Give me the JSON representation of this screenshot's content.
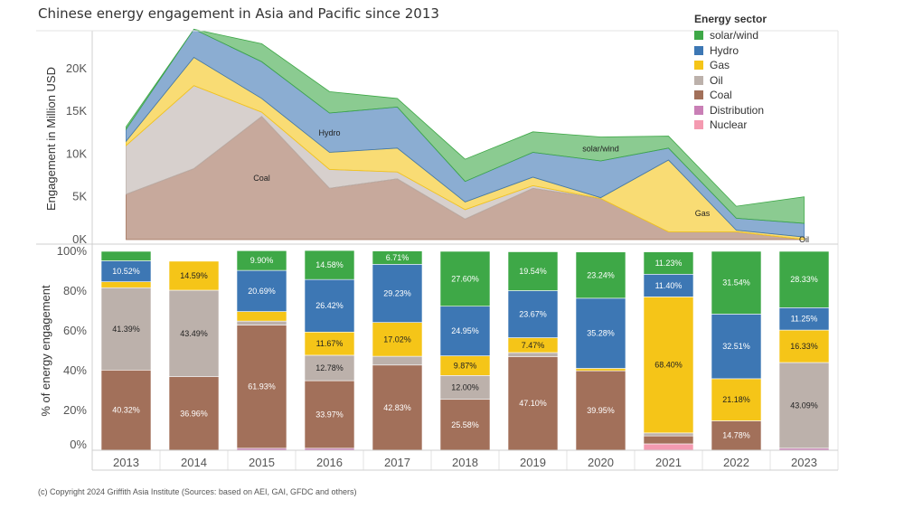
{
  "title": "Chinese energy engagement in Asia and Pacific since 2013",
  "footer": "(c) Copyright 2024 Griffith Asia Institute (Sources: based on AEI, GAI, GFDC and others)",
  "legend": {
    "title": "Energy sector",
    "items": [
      {
        "name": "solar/wind",
        "color": "#3ea847"
      },
      {
        "name": "Hydro",
        "color": "#3d77b4"
      },
      {
        "name": "Gas",
        "color": "#f5c518"
      },
      {
        "name": "Oil",
        "color": "#bcb1ab"
      },
      {
        "name": "Coal",
        "color": "#a2705a"
      },
      {
        "name": "Distribution",
        "color": "#c97fb6"
      },
      {
        "name": "Nuclear",
        "color": "#f49ab0"
      }
    ]
  },
  "chart_data": [
    {
      "type": "area",
      "stacked": true,
      "title": "Chinese energy engagement in Asia and Pacific since 2013",
      "ylabel": "Engagement in Million USD",
      "ylim": [
        0,
        24000
      ],
      "yticks": [
        0,
        5000,
        10000,
        15000,
        20000
      ],
      "ytick_labels": [
        "0K",
        "5K",
        "10K",
        "15K",
        "20K"
      ],
      "categories": [
        "2013",
        "2014",
        "2015",
        "2016",
        "2017",
        "2018",
        "2019",
        "2020",
        "2021",
        "2022",
        "2023"
      ],
      "series": [
        {
          "name": "Nuclear",
          "values": [
            0,
            0,
            0,
            0,
            0,
            0,
            0,
            0,
            0,
            0,
            0
          ]
        },
        {
          "name": "Distribution",
          "values": [
            0,
            0,
            0,
            0,
            0,
            0,
            0,
            0,
            0,
            0,
            0
          ]
        },
        {
          "name": "Coal",
          "values": [
            5300,
            8300,
            14400,
            6000,
            7100,
            2400,
            6000,
            4800,
            900,
            900,
            0
          ]
        },
        {
          "name": "Oil",
          "values": [
            5700,
            9700,
            500,
            2200,
            800,
            1100,
            300,
            0,
            0,
            0,
            0
          ]
        },
        {
          "name": "Gas",
          "values": [
            500,
            3300,
            1600,
            2000,
            2800,
            900,
            1000,
            100,
            8400,
            200,
            300
          ]
        },
        {
          "name": "Hydro",
          "values": [
            1400,
            3300,
            4300,
            4600,
            4800,
            2400,
            2900,
            4300,
            1400,
            1400,
            1600
          ]
        },
        {
          "name": "solar/wind",
          "values": [
            300,
            0,
            2100,
            2500,
            1000,
            2600,
            2400,
            2800,
            1400,
            1400,
            3100
          ]
        }
      ],
      "annotations": [
        "Coal",
        "Hydro",
        "solar/wind",
        "Gas",
        "Oil"
      ]
    },
    {
      "type": "bar",
      "stacked": true,
      "percent": true,
      "ylabel": "% of energy engagement",
      "ylim": [
        0,
        100
      ],
      "yticks": [
        0,
        20,
        40,
        60,
        80,
        100
      ],
      "ytick_labels": [
        "0%",
        "20%",
        "40%",
        "60%",
        "80%",
        "100%"
      ],
      "categories": [
        "2013",
        "2014",
        "2015",
        "2016",
        "2017",
        "2018",
        "2019",
        "2020",
        "2021",
        "2022",
        "2023"
      ],
      "series": [
        {
          "name": "Nuclear",
          "values": [
            0,
            0,
            0,
            0,
            0,
            0,
            0,
            0,
            3.2,
            0,
            0
          ]
        },
        {
          "name": "Distribution",
          "values": [
            0,
            0,
            1.0,
            1.0,
            0,
            0,
            0,
            0,
            0,
            0,
            1.0
          ]
        },
        {
          "name": "Coal",
          "values": [
            40.32,
            36.96,
            61.93,
            33.97,
            42.83,
            25.58,
            47.1,
            39.95,
            4.0,
            14.78,
            0
          ]
        },
        {
          "name": "Oil",
          "values": [
            41.39,
            43.49,
            2.0,
            12.78,
            4.4,
            12.0,
            2.0,
            0,
            1.5,
            0,
            43.09
          ]
        },
        {
          "name": "Gas",
          "values": [
            3.0,
            14.59,
            4.8,
            11.67,
            17.02,
            9.87,
            7.47,
            1.2,
            68.4,
            21.18,
            16.33
          ]
        },
        {
          "name": "Hydro",
          "values": [
            10.52,
            0,
            20.69,
            26.42,
            29.23,
            24.95,
            23.67,
            35.28,
            11.4,
            32.51,
            11.25
          ]
        },
        {
          "name": "solar/wind",
          "values": [
            4.77,
            0,
            9.9,
            14.58,
            6.71,
            27.6,
            19.54,
            23.24,
            11.23,
            31.54,
            28.33
          ]
        }
      ],
      "labels": [
        {
          "category": "2013",
          "series": "Coal",
          "text": "40.32%"
        },
        {
          "category": "2013",
          "series": "Oil",
          "text": "41.39%"
        },
        {
          "category": "2013",
          "series": "Hydro",
          "text": "10.52%"
        },
        {
          "category": "2014",
          "series": "Coal",
          "text": "36.96%"
        },
        {
          "category": "2014",
          "series": "Oil",
          "text": "43.49%"
        },
        {
          "category": "2014",
          "series": "Gas",
          "text": "14.59%"
        },
        {
          "category": "2015",
          "series": "Coal",
          "text": "61.93%"
        },
        {
          "category": "2015",
          "series": "Hydro",
          "text": "20.69%"
        },
        {
          "category": "2015",
          "series": "solar/wind",
          "text": "9.90%"
        },
        {
          "category": "2016",
          "series": "Coal",
          "text": "33.97%"
        },
        {
          "category": "2016",
          "series": "Oil",
          "text": "12.78%"
        },
        {
          "category": "2016",
          "series": "Gas",
          "text": "11.67%"
        },
        {
          "category": "2016",
          "series": "Hydro",
          "text": "26.42%"
        },
        {
          "category": "2016",
          "series": "solar/wind",
          "text": "14.58%"
        },
        {
          "category": "2017",
          "series": "Coal",
          "text": "42.83%"
        },
        {
          "category": "2017",
          "series": "Gas",
          "text": "17.02%"
        },
        {
          "category": "2017",
          "series": "Hydro",
          "text": "29.23%"
        },
        {
          "category": "2017",
          "series": "solar/wind",
          "text": "6.71%"
        },
        {
          "category": "2018",
          "series": "Coal",
          "text": "25.58%"
        },
        {
          "category": "2018",
          "series": "Oil",
          "text": "12.00%"
        },
        {
          "category": "2018",
          "series": "Gas",
          "text": "9.87%"
        },
        {
          "category": "2018",
          "series": "Hydro",
          "text": "24.95%"
        },
        {
          "category": "2018",
          "series": "solar/wind",
          "text": "27.60%"
        },
        {
          "category": "2019",
          "series": "Coal",
          "text": "47.10%"
        },
        {
          "category": "2019",
          "series": "Gas",
          "text": "7.47%"
        },
        {
          "category": "2019",
          "series": "Hydro",
          "text": "23.67%"
        },
        {
          "category": "2019",
          "series": "solar/wind",
          "text": "19.54%"
        },
        {
          "category": "2020",
          "series": "Coal",
          "text": "39.95%"
        },
        {
          "category": "2020",
          "series": "Hydro",
          "text": "35.28%"
        },
        {
          "category": "2020",
          "series": "solar/wind",
          "text": "23.24%"
        },
        {
          "category": "2021",
          "series": "Gas",
          "text": "68.40%"
        },
        {
          "category": "2021",
          "series": "Hydro",
          "text": "11.40%"
        },
        {
          "category": "2021",
          "series": "solar/wind",
          "text": "11.23%"
        },
        {
          "category": "2022",
          "series": "Coal",
          "text": "14.78%"
        },
        {
          "category": "2022",
          "series": "Gas",
          "text": "21.18%"
        },
        {
          "category": "2022",
          "series": "Hydro",
          "text": "32.51%"
        },
        {
          "category": "2022",
          "series": "solar/wind",
          "text": "31.54%"
        },
        {
          "category": "2023",
          "series": "Oil",
          "text": "43.09%"
        },
        {
          "category": "2023",
          "series": "Gas",
          "text": "16.33%"
        },
        {
          "category": "2023",
          "series": "Hydro",
          "text": "11.25%"
        },
        {
          "category": "2023",
          "series": "solar/wind",
          "text": "28.33%"
        }
      ]
    }
  ]
}
